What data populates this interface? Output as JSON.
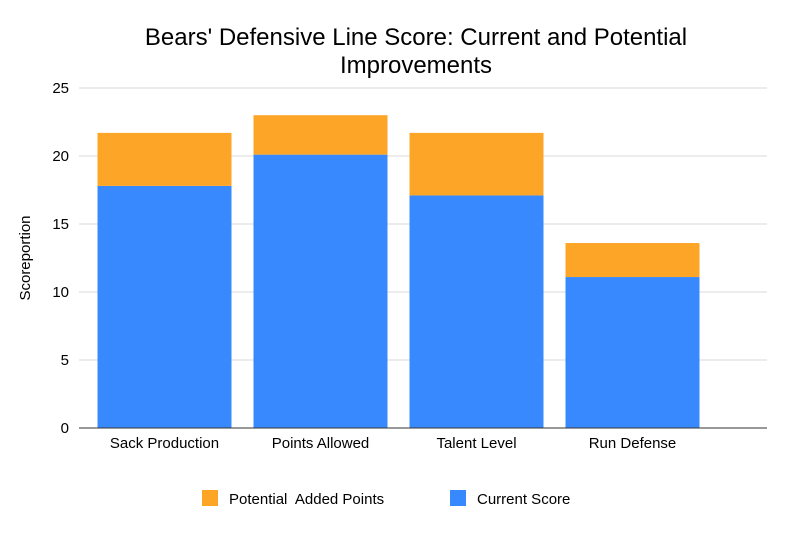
{
  "chart_data": {
    "type": "bar",
    "stacked": true,
    "title": [
      "Bears' Defensive Line Score: Current and Potential",
      "Improvements"
    ],
    "xlabel": "",
    "ylabel": "Scoreportion",
    "ylim": [
      0,
      25
    ],
    "yticks": [
      "0",
      "5",
      "10",
      "15",
      "20",
      "25"
    ],
    "ytick_values": [
      0,
      5,
      10,
      15,
      20,
      25
    ],
    "grid": true,
    "legend_position": "bottom",
    "categories": [
      "Sack Production",
      "Points Allowed",
      "Talent Level",
      "Run Defense"
    ],
    "series": [
      {
        "name": "Current Score",
        "color": "#3889fd",
        "values": [
          17.8,
          20.1,
          17.1,
          11.1
        ]
      },
      {
        "name": "Potential Added Points",
        "color": "#fda527",
        "values": [
          3.9,
          2.9,
          4.6,
          2.5
        ]
      }
    ],
    "legend": [
      {
        "name": "Potential  Added Points",
        "color": "#fda527"
      },
      {
        "name": "Current Score",
        "color": "#3889fd"
      }
    ]
  }
}
